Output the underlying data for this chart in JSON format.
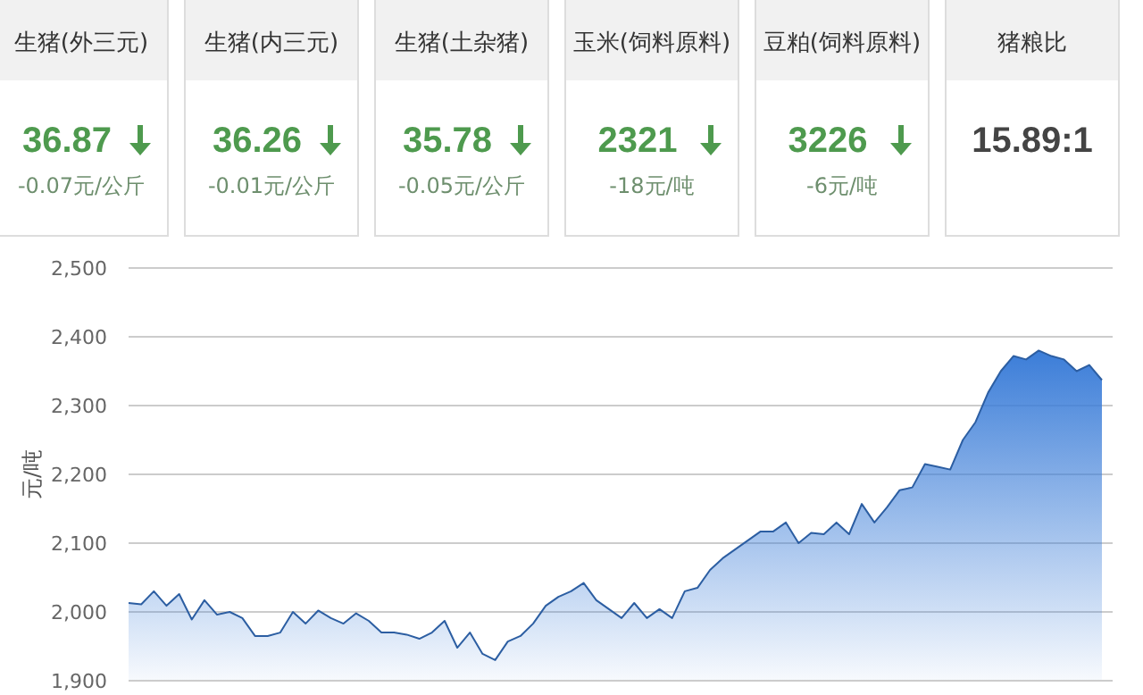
{
  "chart_data": [
    {
      "type": "other",
      "categories": [
        "生猪(外三元)",
        "生猪(内三元)",
        "生猪(土杂猪)",
        "玉米(饲料原料)",
        "豆粕(饲料原料)",
        "猪粮比"
      ],
      "annotations": [
        "36.87",
        "-0.07元/公斤",
        "36.26",
        "-0.01元/公斤",
        "35.78",
        "-0.05元/公斤",
        "2321",
        "-18元/吨",
        "3226",
        "-6元/吨",
        "15.89:1"
      ]
    },
    {
      "type": "area",
      "ylabel": "元/吨",
      "ylim": [
        1900,
        2500
      ],
      "yticks": [
        {
          "value": 1900,
          "label": "1,900"
        },
        {
          "value": 2000,
          "label": "2,000"
        },
        {
          "value": 2100,
          "label": "2,100"
        },
        {
          "value": 2200,
          "label": "2,200"
        },
        {
          "value": 2300,
          "label": "2,300"
        },
        {
          "value": 2400,
          "label": "2,400"
        },
        {
          "value": 2500,
          "label": "2,500"
        }
      ],
      "grid": "y",
      "tick_labels": "y",
      "categories": [
        null,
        null,
        null,
        null,
        null,
        null,
        null,
        null,
        null,
        null,
        null,
        null,
        null,
        null,
        null,
        null,
        null,
        null,
        null,
        null,
        null,
        null,
        null,
        null,
        null,
        null,
        null,
        null,
        null,
        null,
        null,
        null,
        null,
        null,
        null,
        null,
        null,
        null,
        null,
        null,
        null,
        null,
        null,
        null,
        null,
        null,
        null,
        null,
        null,
        null,
        null,
        null,
        null,
        null,
        null,
        null,
        null,
        null,
        null,
        null,
        null,
        null,
        null,
        null,
        null,
        null,
        null,
        null,
        null,
        null,
        null,
        null,
        null,
        null,
        null,
        null,
        null,
        null
      ],
      "series": [
        {
          "color": "#3b7dd8",
          "values": [
            2013,
            2011,
            2030,
            2009,
            2026,
            1989,
            2017,
            1996,
            2000,
            1991,
            1965,
            1965,
            1970,
            2000,
            1983,
            2002,
            1991,
            1983,
            1998,
            1987,
            1970,
            1970,
            1967,
            1961,
            1970,
            1987,
            1948,
            1970,
            1939,
            1930,
            1957,
            1965,
            1983,
            2009,
            2022,
            2030,
            2042,
            2017,
            2004,
            1991,
            2013,
            1991,
            2004,
            1991,
            2030,
            2035,
            2061,
            2078,
            2091,
            2104,
            2117,
            2117,
            2130,
            2100,
            2115,
            2113,
            2130,
            2113,
            2157,
            2130,
            2152,
            2177,
            2181,
            2215,
            2211,
            2207,
            2250,
            2276,
            2319,
            2350,
            2372,
            2367,
            2380,
            2372,
            2367,
            2350,
            2359,
            2337
          ]
        }
      ]
    }
  ]
}
